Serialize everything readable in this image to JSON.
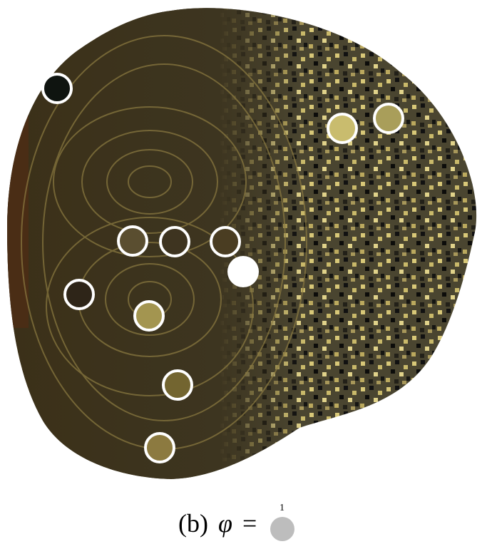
{
  "caption": {
    "label": "(b)",
    "symbol": "φ",
    "equals": "=",
    "superscript": "1"
  }
}
